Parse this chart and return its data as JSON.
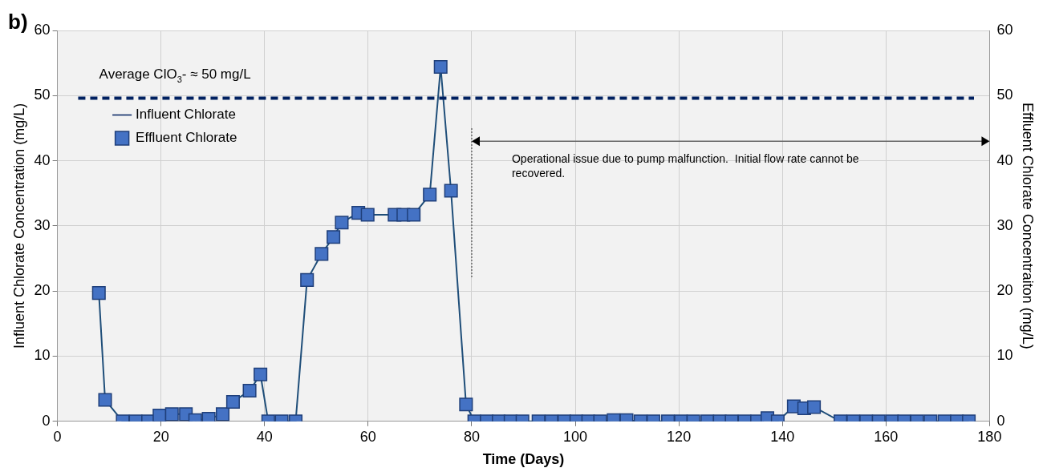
{
  "chart_data": {
    "type": "line",
    "xlabel": "Time (Days)",
    "ylabel": "Influent Chlorate Concentration (mg/L)",
    "y2label": "Effluent Chlorate Concentraiton (mg/L)",
    "xlim": [
      0,
      180
    ],
    "xticks": [
      0,
      20,
      40,
      60,
      80,
      100,
      120,
      140,
      160,
      180
    ],
    "ylim": [
      0,
      60
    ],
    "yticks": [
      0,
      10,
      20,
      30,
      40,
      50,
      60
    ],
    "y2lim": [
      0,
      60
    ],
    "y2ticks": [
      0,
      10,
      20,
      30,
      40,
      50,
      60
    ],
    "grid": true,
    "legend": "top left",
    "annotations": [
      "b)",
      "Average ClO$_{3}$- ≈ 50 mg/L",
      "Operational issue due to pump malfunction.  Initial flow rate cannot be recovered."
    ],
    "series": [
      {
        "name": "Influent Chlorate",
        "color": "#002060",
        "type": "line",
        "line_style": "dashed",
        "marker": "none",
        "x": [
          4,
          177
        ],
        "values": [
          49.6,
          49.6
        ]
      },
      {
        "name": "Effluent Chlorate",
        "color": "#4472c4",
        "type": "line",
        "line_style": "solid",
        "marker": "square",
        "axis": "y2",
        "x": [
          8,
          9.2,
          12.6,
          15.1,
          17.5,
          19.7,
          22.1,
          24.8,
          26.6,
          29.2,
          31.9,
          33.9,
          37.1,
          39.2,
          40.7,
          43.3,
          46,
          48.2,
          51,
          53.3,
          54.9,
          58.1,
          59.9,
          65.1,
          66.8,
          68.8,
          71.9,
          74,
          76,
          78.9,
          80.5,
          82.9,
          85.2,
          87.5,
          89.8,
          92.9,
          95.4,
          97.9,
          100.2,
          102.5,
          104.8,
          107.4,
          109.9,
          112.6,
          115.1,
          117.9,
          120.4,
          122.8,
          125.5,
          127.9,
          130.2,
          132.7,
          135.1,
          137.1,
          139.1,
          142.2,
          144.2,
          146.1,
          151.2,
          153.7,
          156.2,
          158.6,
          161.2,
          163.5,
          166,
          168.6,
          171.3,
          173.7,
          176
        ],
        "values": [
          19.7,
          3.3,
          0,
          0,
          0,
          0.9,
          1.1,
          1.1,
          0.2,
          0.4,
          1.1,
          3,
          4.7,
          7.2,
          0,
          0,
          0,
          21.7,
          25.7,
          28.3,
          30.5,
          32,
          31.7,
          31.7,
          31.7,
          31.7,
          34.8,
          54.4,
          35.4,
          2.6,
          0,
          0,
          0,
          0,
          0,
          0,
          0,
          0,
          0,
          0,
          0,
          0.2,
          0.2,
          0,
          0,
          0,
          0,
          0,
          0,
          0,
          0,
          0,
          0,
          0.5,
          0,
          2.3,
          2,
          2.2,
          0,
          0,
          0,
          0,
          0,
          0,
          0,
          0,
          0,
          0,
          0
        ]
      }
    ]
  }
}
